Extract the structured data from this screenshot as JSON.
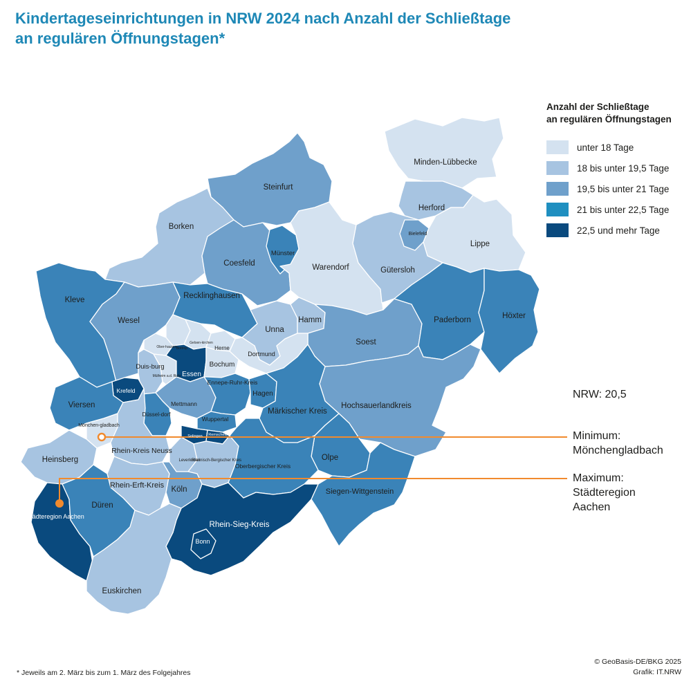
{
  "title": {
    "line1": "Kindertageseinrichtungen in NRW 2024 nach Anzahl der Schließtage",
    "line2": "an regulären Öffnungstagen*"
  },
  "legend": {
    "title_line1": "Anzahl der Schließtage",
    "title_line2": "an regulären Öffnungstagen",
    "items": [
      {
        "label": "unter 18 Tage",
        "color": "#d4e2f0"
      },
      {
        "label": "18 bis unter 19,5 Tage",
        "color": "#a7c4e1"
      },
      {
        "label": "19,5 bis unter 21 Tage",
        "color": "#6fa0cb"
      },
      {
        "label": "21 bis unter 22,5 Tage",
        "color": "#3a83b8"
      },
      {
        "label": "22,5 und mehr Tage",
        "color": "#0a4a7e"
      }
    ]
  },
  "stats": {
    "nrw": "NRW: 20,5",
    "minimum_label": "Minimum:",
    "minimum_value": "Mönchengladbach",
    "maximum_label": "Maximum:",
    "maximum_line1": "Städteregion",
    "maximum_line2": "Aachen"
  },
  "accent_color": "#f18a2d",
  "title_color": "#1e88b6",
  "regions": {
    "minden": "Minden-Lübbecke",
    "steinfurt": "Steinfurt",
    "herford": "Herford",
    "borken": "Borken",
    "bielefeld": "Bielefeld",
    "lippe": "Lippe",
    "muenster": "Münster",
    "coesfeld": "Coesfeld",
    "warendorf": "Warendorf",
    "guetersloh": "Gütersloh",
    "kleve": "Kleve",
    "recklinghausen": "Recklinghausen",
    "paderborn": "Paderborn",
    "hoexter": "Höxter",
    "wesel": "Wesel",
    "unna": "Unna",
    "hamm": "Hamm",
    "bottrop": "Bottrop",
    "gelsenkirchen": "Gelsen-kirchen",
    "herne": "Herne",
    "oberhausen": "Ober-hausen",
    "soest": "Soest",
    "dortmund": "Dortmund",
    "duisburg": "Duis-burg",
    "bochum": "Bochum",
    "muelheim": "Mülheim a.d. Ruhr",
    "essen": "Essen",
    "ennepe": "Ennepe-Ruhr-Kreis",
    "krefeld": "Krefeld",
    "hagen": "Hagen",
    "viersen": "Viersen",
    "mettmann": "Mettmann",
    "hochsauerland": "Hochsauerlandkreis",
    "maerkisch": "Märkischer Kreis",
    "duesseldorf": "Düssel-dorf",
    "moenchengladbach": "Mönchen-gladbach",
    "wuppertal": "Wuppertal",
    "solingen": "Solingen",
    "remscheid": "Remscheid",
    "heinsberg": "Heinsberg",
    "rhein_kreis_neuss": "Rhein-Kreis Neuss",
    "olpe": "Olpe",
    "leverkusen": "Leverkusen",
    "rheinisch_bergisch": "Rheinisch-Bergischer Kreis",
    "oberbergisch": "Oberbergischer Kreis",
    "rhein_erft": "Rhein-Erft-Kreis",
    "siegen": "Siegen-Wittgenstein",
    "koeln": "Köln",
    "staedteregion_aachen": "Städteregion Aachen",
    "dueren": "Düren",
    "rhein_sieg": "Rhein-Sieg-Kreis",
    "bonn": "Bonn",
    "euskirchen": "Euskirchen"
  },
  "footnote": "*  Jeweils am 2. März bis zum 1. März des Folgejahres",
  "credits": {
    "line1": "© GeoBasis-DE/BKG 2025",
    "line2": "Grafik: IT.NRW"
  }
}
